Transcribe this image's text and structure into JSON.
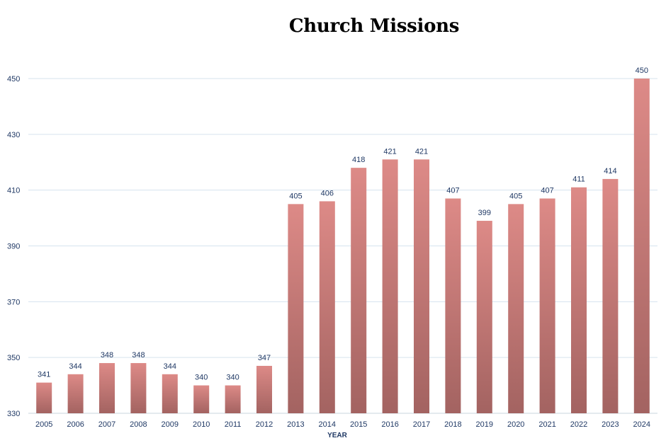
{
  "chart_data": {
    "type": "bar",
    "title": "Church Missions",
    "xlabel": "YEAR",
    "ylabel": "",
    "ylim": [
      330,
      450
    ],
    "yticks": [
      330,
      350,
      370,
      390,
      410,
      430,
      450
    ],
    "grid": true,
    "legend": "none",
    "categories": [
      "2005",
      "2006",
      "2007",
      "2008",
      "2009",
      "2010",
      "2011",
      "2012",
      "2013",
      "2014",
      "2015",
      "2016",
      "2017",
      "2018",
      "2019",
      "2020",
      "2021",
      "2022",
      "2023",
      "2024"
    ],
    "values": [
      341,
      344,
      348,
      348,
      344,
      340,
      340,
      347,
      405,
      406,
      418,
      421,
      421,
      407,
      399,
      405,
      407,
      411,
      414,
      450
    ],
    "colors": {
      "bar_top": "#dd8a87",
      "bar_bottom": "#a36361",
      "text": "#1f3864",
      "grid": "#d6e3ee",
      "axis": "#c8d4de"
    }
  }
}
